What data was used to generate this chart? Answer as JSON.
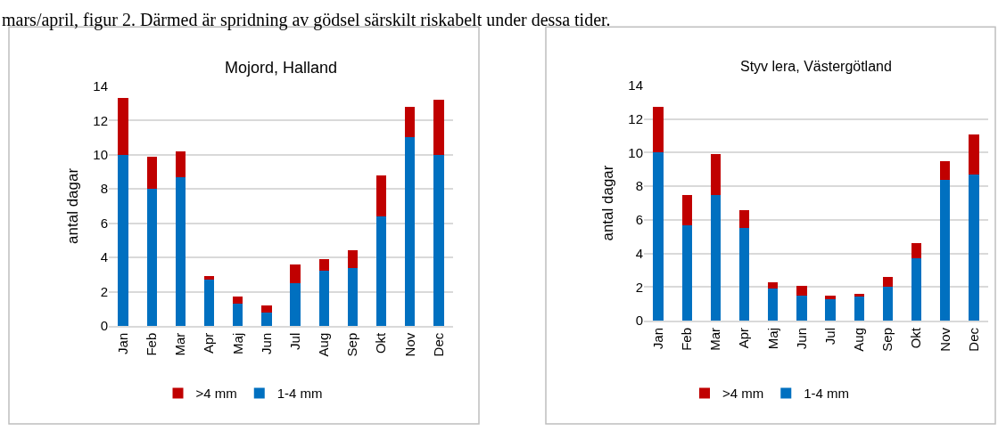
{
  "chart_data": [
    {
      "type": "bar",
      "title": "Mojord, Halland",
      "ylabel": "antal dagar",
      "stacked": true,
      "categories": [
        "Jan",
        "Feb",
        "Mar",
        "Apr",
        "Maj",
        "Jun",
        "Jul",
        "Aug",
        "Sep",
        "Okt",
        "Nov",
        "Dec"
      ],
      "series": [
        {
          "name": "1-4 mm",
          "color": "#0070c0",
          "values": [
            10,
            8,
            8.7,
            2.7,
            1.3,
            0.8,
            2.5,
            3.2,
            3.4,
            6.4,
            11,
            10
          ]
        },
        {
          "name": ">4 mm",
          "color": "#c00000",
          "values": [
            3.3,
            1.9,
            1.5,
            0.2,
            0.4,
            0.4,
            1.1,
            0.7,
            1.0,
            2.4,
            1.8,
            3.2
          ]
        }
      ],
      "ylim": [
        0,
        14
      ],
      "yticks": [
        0,
        2,
        4,
        6,
        8,
        10,
        12,
        14
      ],
      "grid": "y",
      "legend": "bottom",
      "annotations": [
        "mars/april, figur 2. Därmed är spridning av gödsel särskilt riskabelt under dessa tider."
      ]
    },
    {
      "type": "bar",
      "title": "Styv lera, Västergötland",
      "ylabel": "antal dagar",
      "stacked": true,
      "categories": [
        "Jan",
        "Feb",
        "Mar",
        "Apr",
        "Maj",
        "Jun",
        "Jul",
        "Aug",
        "Sep",
        "Okt",
        "Nov",
        "Dec"
      ],
      "series": [
        {
          "name": "1-4 mm",
          "color": "#0070c0",
          "values": [
            10,
            5.7,
            7.5,
            5.5,
            1.9,
            1.5,
            1.3,
            1.5,
            2.0,
            3.7,
            8.4,
            8.7
          ]
        },
        {
          "name": ">4 mm",
          "color": "#c00000",
          "values": [
            2.7,
            1.8,
            2.4,
            1.1,
            0.4,
            0.6,
            0.2,
            0.1,
            0.6,
            0.9,
            1.1,
            2.4
          ]
        }
      ],
      "ylim": [
        0,
        14
      ],
      "yticks": [
        0,
        2,
        4,
        6,
        8,
        10,
        12,
        14
      ],
      "grid": "y",
      "legend": "bottom"
    }
  ]
}
